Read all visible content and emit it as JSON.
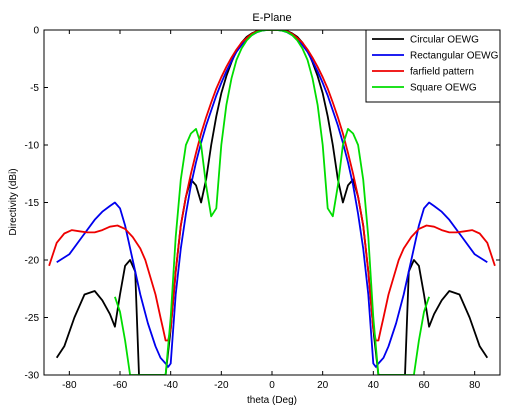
{
  "chart_data": {
    "type": "line",
    "title": "E-Plane",
    "xlabel": "theta (Deg)",
    "ylabel": "Directivity (dBi)",
    "xlim": [
      -90,
      90
    ],
    "ylim": [
      -30,
      0
    ],
    "xticks": [
      -80,
      -60,
      -40,
      -20,
      0,
      20,
      40,
      60,
      80
    ],
    "yticks": [
      0,
      -5,
      -10,
      -15,
      -20,
      -25,
      -30
    ],
    "legend_position": "top-right",
    "series": [
      {
        "name": "Circular OEWG",
        "color": "#000000",
        "x": [
          -85,
          -82,
          -78,
          -74,
          -70,
          -67,
          -64,
          -62,
          -60,
          -58,
          -56,
          -54,
          -52.5,
          -51,
          -48,
          -46,
          -44,
          -42,
          -40,
          -38,
          -36,
          -34,
          -32,
          -30,
          -28,
          -26,
          -24,
          -22,
          -20,
          -18,
          -16,
          -14,
          -12,
          -10,
          -8,
          -6,
          -4,
          -2,
          0,
          2,
          4,
          6,
          8,
          10,
          12,
          14,
          16,
          18,
          20,
          22,
          24,
          26,
          28,
          30,
          32,
          34,
          36,
          38,
          40,
          42,
          44,
          46,
          48,
          51,
          52.5,
          54,
          56,
          58,
          60,
          62,
          64,
          67,
          70,
          74,
          78,
          82,
          85
        ],
        "y": [
          -28.5,
          -27.5,
          -25,
          -23,
          -22.7,
          -23.5,
          -24.7,
          -25.8,
          -23,
          -20.5,
          -20,
          -21,
          -30,
          -30,
          -30,
          -30,
          -30,
          -30,
          -26,
          -21,
          -17,
          -14.5,
          -13,
          -13.5,
          -15,
          -13,
          -10,
          -7.5,
          -5.5,
          -4,
          -2.8,
          -1.8,
          -1.1,
          -0.6,
          -0.3,
          -0.1,
          -0.02,
          0,
          0,
          0,
          -0.02,
          -0.1,
          -0.3,
          -0.6,
          -1.1,
          -1.8,
          -2.8,
          -4,
          -5.5,
          -7.5,
          -10,
          -13,
          -15,
          -13.5,
          -13,
          -14.5,
          -17,
          -21,
          -26,
          -30,
          -30,
          -30,
          -30,
          -30,
          -30,
          -21,
          -20,
          -20.5,
          -23,
          -25.8,
          -24.7,
          -23.5,
          -22.7,
          -23,
          -25,
          -27.5,
          -28.5
        ]
      },
      {
        "name": "Rectangular OEWG",
        "color": "#0000ee",
        "x": [
          -85,
          -80,
          -75,
          -70,
          -67,
          -64,
          -62,
          -60,
          -58,
          -55,
          -52,
          -49,
          -46,
          -44,
          -42,
          -41,
          -40,
          -38,
          -36,
          -34,
          -32,
          -30,
          -28,
          -26,
          -24,
          -22,
          -20,
          -18,
          -16,
          -14,
          -12,
          -10,
          -8,
          -6,
          -4,
          -2,
          0,
          2,
          4,
          6,
          8,
          10,
          12,
          14,
          16,
          18,
          20,
          22,
          24,
          26,
          28,
          30,
          32,
          34,
          36,
          38,
          40,
          41,
          42,
          44,
          46,
          49,
          52,
          55,
          58,
          60,
          62,
          64,
          67,
          70,
          75,
          80,
          85
        ],
        "y": [
          -20.2,
          -19.5,
          -18,
          -16.5,
          -15.8,
          -15.3,
          -15,
          -15.5,
          -17,
          -20,
          -23,
          -25.5,
          -27.5,
          -28.5,
          -29,
          -29.3,
          -29,
          -23,
          -19,
          -16,
          -13.5,
          -11.5,
          -9.8,
          -8.3,
          -7,
          -5.7,
          -4.6,
          -3.6,
          -2.7,
          -1.9,
          -1.3,
          -0.8,
          -0.45,
          -0.2,
          -0.05,
          0,
          0,
          0,
          -0.05,
          -0.2,
          -0.45,
          -0.8,
          -1.3,
          -1.9,
          -2.7,
          -3.6,
          -4.6,
          -5.7,
          -7,
          -8.3,
          -9.8,
          -11.5,
          -13.5,
          -16,
          -19,
          -23,
          -29,
          -29.3,
          -29,
          -28.5,
          -27.5,
          -25.5,
          -23,
          -20,
          -17,
          -15.5,
          -15,
          -15.3,
          -15.8,
          -16.5,
          -18,
          -19.5,
          -20.2
        ]
      },
      {
        "name": "farfield pattern",
        "color": "#ee0000",
        "x": [
          -88,
          -85,
          -82,
          -79,
          -76,
          -73,
          -70,
          -67,
          -64,
          -61,
          -58,
          -55,
          -52,
          -50,
          -48,
          -46,
          -44,
          -43,
          -42,
          -41,
          -40,
          -38,
          -36,
          -34,
          -32,
          -30,
          -28,
          -26,
          -24,
          -22,
          -20,
          -18,
          -16,
          -14,
          -12,
          -10,
          -8,
          -6,
          -4,
          -2,
          0,
          2,
          4,
          6,
          8,
          10,
          12,
          14,
          16,
          18,
          20,
          22,
          24,
          26,
          28,
          30,
          32,
          34,
          36,
          38,
          40,
          41,
          42,
          43,
          44,
          46,
          48,
          50,
          52,
          55,
          58,
          61,
          64,
          67,
          70,
          73,
          76,
          79,
          82,
          85,
          88
        ],
        "y": [
          -20.5,
          -18.5,
          -17.7,
          -17.4,
          -17.5,
          -17.6,
          -17.6,
          -17.4,
          -17.1,
          -17,
          -17.3,
          -18,
          -19,
          -20,
          -21.5,
          -23,
          -25,
          -26,
          -27,
          -27,
          -26,
          -21,
          -17,
          -14.5,
          -12.5,
          -10.7,
          -9,
          -7.6,
          -6.3,
          -5.1,
          -4.1,
          -3.2,
          -2.4,
          -1.7,
          -1.1,
          -0.7,
          -0.35,
          -0.12,
          -0.02,
          0,
          0,
          0,
          -0.02,
          -0.12,
          -0.35,
          -0.7,
          -1.1,
          -1.7,
          -2.4,
          -3.2,
          -4.1,
          -5.1,
          -6.3,
          -7.6,
          -9,
          -10.7,
          -12.5,
          -14.5,
          -17,
          -21,
          -26,
          -27,
          -27,
          -26,
          -25,
          -23,
          -21.5,
          -20,
          -19,
          -18,
          -17.3,
          -17,
          -17.1,
          -17.4,
          -17.6,
          -17.6,
          -17.5,
          -17.4,
          -17.7,
          -18.5,
          -20.5
        ]
      },
      {
        "name": "Square OEWG",
        "color": "#00dd00",
        "x": [
          -62,
          -60,
          -58,
          -56,
          -54,
          -52,
          -50,
          -49,
          -48,
          -46,
          -44,
          -42,
          -40,
          -38,
          -36,
          -34,
          -32,
          -30,
          -28,
          -26,
          -24,
          -22,
          -20,
          -18,
          -16,
          -14,
          -12,
          -10,
          -8,
          -6,
          -4,
          -2,
          0,
          2,
          4,
          6,
          8,
          10,
          12,
          14,
          16,
          18,
          20,
          22,
          24,
          26,
          28,
          30,
          32,
          34,
          36,
          38,
          40,
          42,
          44,
          46,
          48,
          49,
          50,
          52,
          54,
          56,
          58,
          60,
          62
        ],
        "y": [
          -23.2,
          -24.5,
          -27,
          -30,
          -30,
          -30,
          -30,
          -30,
          -30,
          -30,
          -30,
          -30,
          -25,
          -18,
          -13,
          -10,
          -9,
          -8.6,
          -10,
          -13.5,
          -16.2,
          -15.5,
          -10,
          -6.5,
          -4.2,
          -2.6,
          -1.6,
          -0.9,
          -0.45,
          -0.18,
          -0.05,
          0,
          0,
          0,
          -0.05,
          -0.18,
          -0.45,
          -0.9,
          -1.6,
          -2.6,
          -4.2,
          -6.5,
          -10,
          -15.5,
          -16.2,
          -13.5,
          -10,
          -8.6,
          -9,
          -10,
          -13,
          -18,
          -25,
          -30,
          -30,
          -30,
          -30,
          -30,
          -30,
          -30,
          -30,
          -30,
          -27,
          -24.5,
          -23.2
        ]
      }
    ]
  }
}
